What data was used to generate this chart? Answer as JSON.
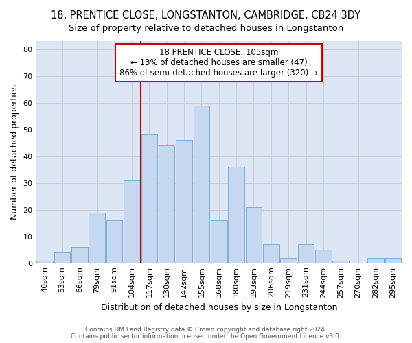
{
  "title_line1": "18, PRENTICE CLOSE, LONGSTANTON, CAMBRIDGE, CB24 3DY",
  "title_line2": "Size of property relative to detached houses in Longstanton",
  "xlabel": "Distribution of detached houses by size in Longstanton",
  "ylabel": "Number of detached properties",
  "bar_labels": [
    "40sqm",
    "53sqm",
    "66sqm",
    "79sqm",
    "91sqm",
    "104sqm",
    "117sqm",
    "130sqm",
    "142sqm",
    "155sqm",
    "168sqm",
    "180sqm",
    "193sqm",
    "206sqm",
    "219sqm",
    "231sqm",
    "244sqm",
    "257sqm",
    "270sqm",
    "282sqm",
    "295sqm"
  ],
  "bar_heights": [
    1,
    4,
    6,
    19,
    16,
    31,
    48,
    44,
    46,
    59,
    16,
    36,
    21,
    7,
    2,
    7,
    5,
    1,
    0,
    2,
    2
  ],
  "bar_color": "#c5d8f0",
  "bar_edge_color": "#7bafd4",
  "vline_x": 5.5,
  "vline_color": "#cc0000",
  "annotation_text": "18 PRENTICE CLOSE: 105sqm\n← 13% of detached houses are smaller (47)\n86% of semi-detached houses are larger (320) →",
  "annotation_box_color": "white",
  "annotation_box_edge_color": "#cc0000",
  "ylim": [
    0,
    83
  ],
  "yticks": [
    0,
    10,
    20,
    30,
    40,
    50,
    60,
    70,
    80
  ],
  "grid_color": "#cccccc",
  "background_color": "#dce6f5",
  "footer_text": "Contains HM Land Registry data © Crown copyright and database right 2024.\nContains public sector information licensed under the Open Government Licence v3.0.",
  "title_fontsize": 10.5,
  "subtitle_fontsize": 9.5,
  "axis_label_fontsize": 9,
  "tick_fontsize": 8,
  "annotation_fontsize": 8.5,
  "footer_fontsize": 6.5
}
